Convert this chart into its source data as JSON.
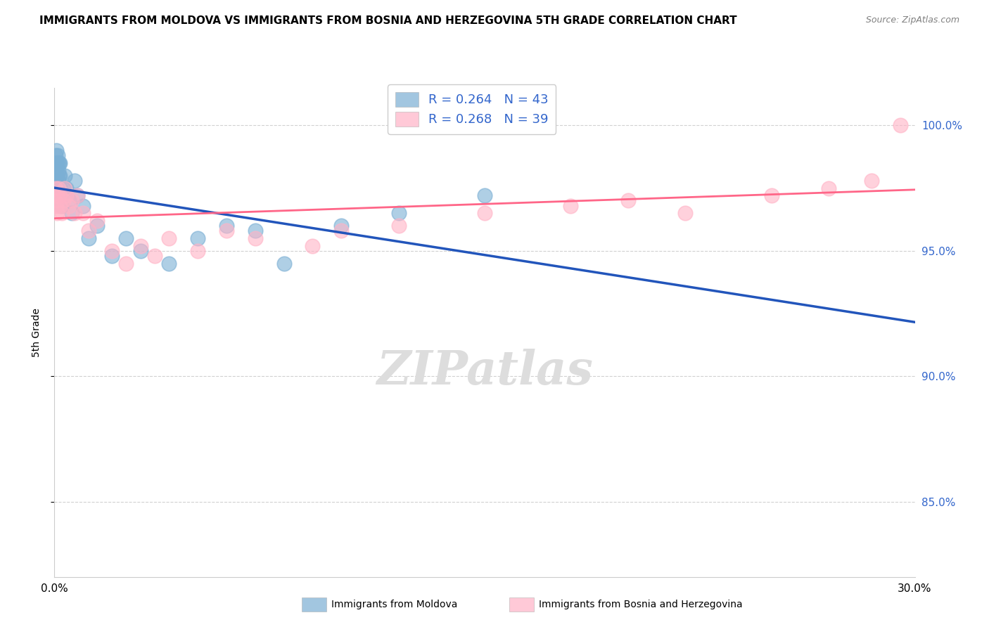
{
  "title": "IMMIGRANTS FROM MOLDOVA VS IMMIGRANTS FROM BOSNIA AND HERZEGOVINA 5TH GRADE CORRELATION CHART",
  "source": "Source: ZipAtlas.com",
  "ylabel": "5th Grade",
  "xlim": [
    0.0,
    30.0
  ],
  "ylim": [
    82.0,
    101.5
  ],
  "yticks": [
    85.0,
    90.0,
    95.0,
    100.0
  ],
  "ytick_labels": [
    "85.0%",
    "90.0%",
    "95.0%",
    "100.0%"
  ],
  "xticks": [
    0.0,
    5.0,
    10.0,
    15.0,
    20.0,
    25.0,
    30.0
  ],
  "xtick_labels": [
    "0.0%",
    "",
    "",
    "",
    "",
    "",
    "30.0%"
  ],
  "series1_label": "Immigrants from Moldova",
  "series1_color": "#7BAFD4",
  "series1_line_color": "#2255BB",
  "series1_R": 0.264,
  "series1_N": 43,
  "series2_label": "Immigrants from Bosnia and Herzegovina",
  "series2_color": "#FFB3C6",
  "series2_line_color": "#FF6688",
  "series2_R": 0.268,
  "series2_N": 39,
  "legend_text_color": "#3366CC",
  "background_color": "#ffffff",
  "grid_color": "#cccccc",
  "moldova_x": [
    0.02,
    0.03,
    0.04,
    0.05,
    0.06,
    0.07,
    0.08,
    0.09,
    0.1,
    0.11,
    0.12,
    0.13,
    0.14,
    0.15,
    0.16,
    0.17,
    0.18,
    0.19,
    0.2,
    0.22,
    0.25,
    0.28,
    0.3,
    0.35,
    0.4,
    0.5,
    0.6,
    0.7,
    0.8,
    1.0,
    1.2,
    1.5,
    2.0,
    2.5,
    3.0,
    4.0,
    5.0,
    6.0,
    7.0,
    8.0,
    10.0,
    12.0,
    15.0
  ],
  "moldova_y": [
    98.5,
    98.8,
    97.8,
    98.2,
    98.5,
    99.0,
    98.0,
    98.5,
    97.5,
    98.8,
    97.0,
    98.2,
    98.5,
    97.8,
    98.0,
    98.5,
    97.2,
    98.0,
    98.5,
    97.5,
    96.8,
    97.2,
    97.5,
    98.0,
    97.5,
    97.0,
    96.5,
    97.8,
    97.2,
    96.8,
    95.5,
    96.0,
    94.8,
    95.5,
    95.0,
    94.5,
    95.5,
    96.0,
    95.8,
    94.5,
    96.0,
    96.5,
    97.2
  ],
  "bosnia_x": [
    0.02,
    0.04,
    0.06,
    0.08,
    0.1,
    0.12,
    0.15,
    0.18,
    0.2,
    0.25,
    0.3,
    0.35,
    0.4,
    0.5,
    0.6,
    0.7,
    0.8,
    1.0,
    1.2,
    1.5,
    2.0,
    2.5,
    3.0,
    3.5,
    4.0,
    5.0,
    6.0,
    7.0,
    9.0,
    10.0,
    12.0,
    15.0,
    18.0,
    20.0,
    22.0,
    25.0,
    27.0,
    28.5,
    29.5
  ],
  "bosnia_y": [
    97.0,
    97.5,
    96.8,
    97.2,
    96.5,
    97.0,
    97.5,
    96.8,
    97.2,
    96.5,
    97.0,
    97.5,
    97.2,
    96.8,
    97.0,
    96.5,
    97.2,
    96.5,
    95.8,
    96.2,
    95.0,
    94.5,
    95.2,
    94.8,
    95.5,
    95.0,
    95.8,
    95.5,
    95.2,
    95.8,
    96.0,
    96.5,
    96.8,
    97.0,
    96.5,
    97.2,
    97.5,
    97.8,
    100.0
  ]
}
